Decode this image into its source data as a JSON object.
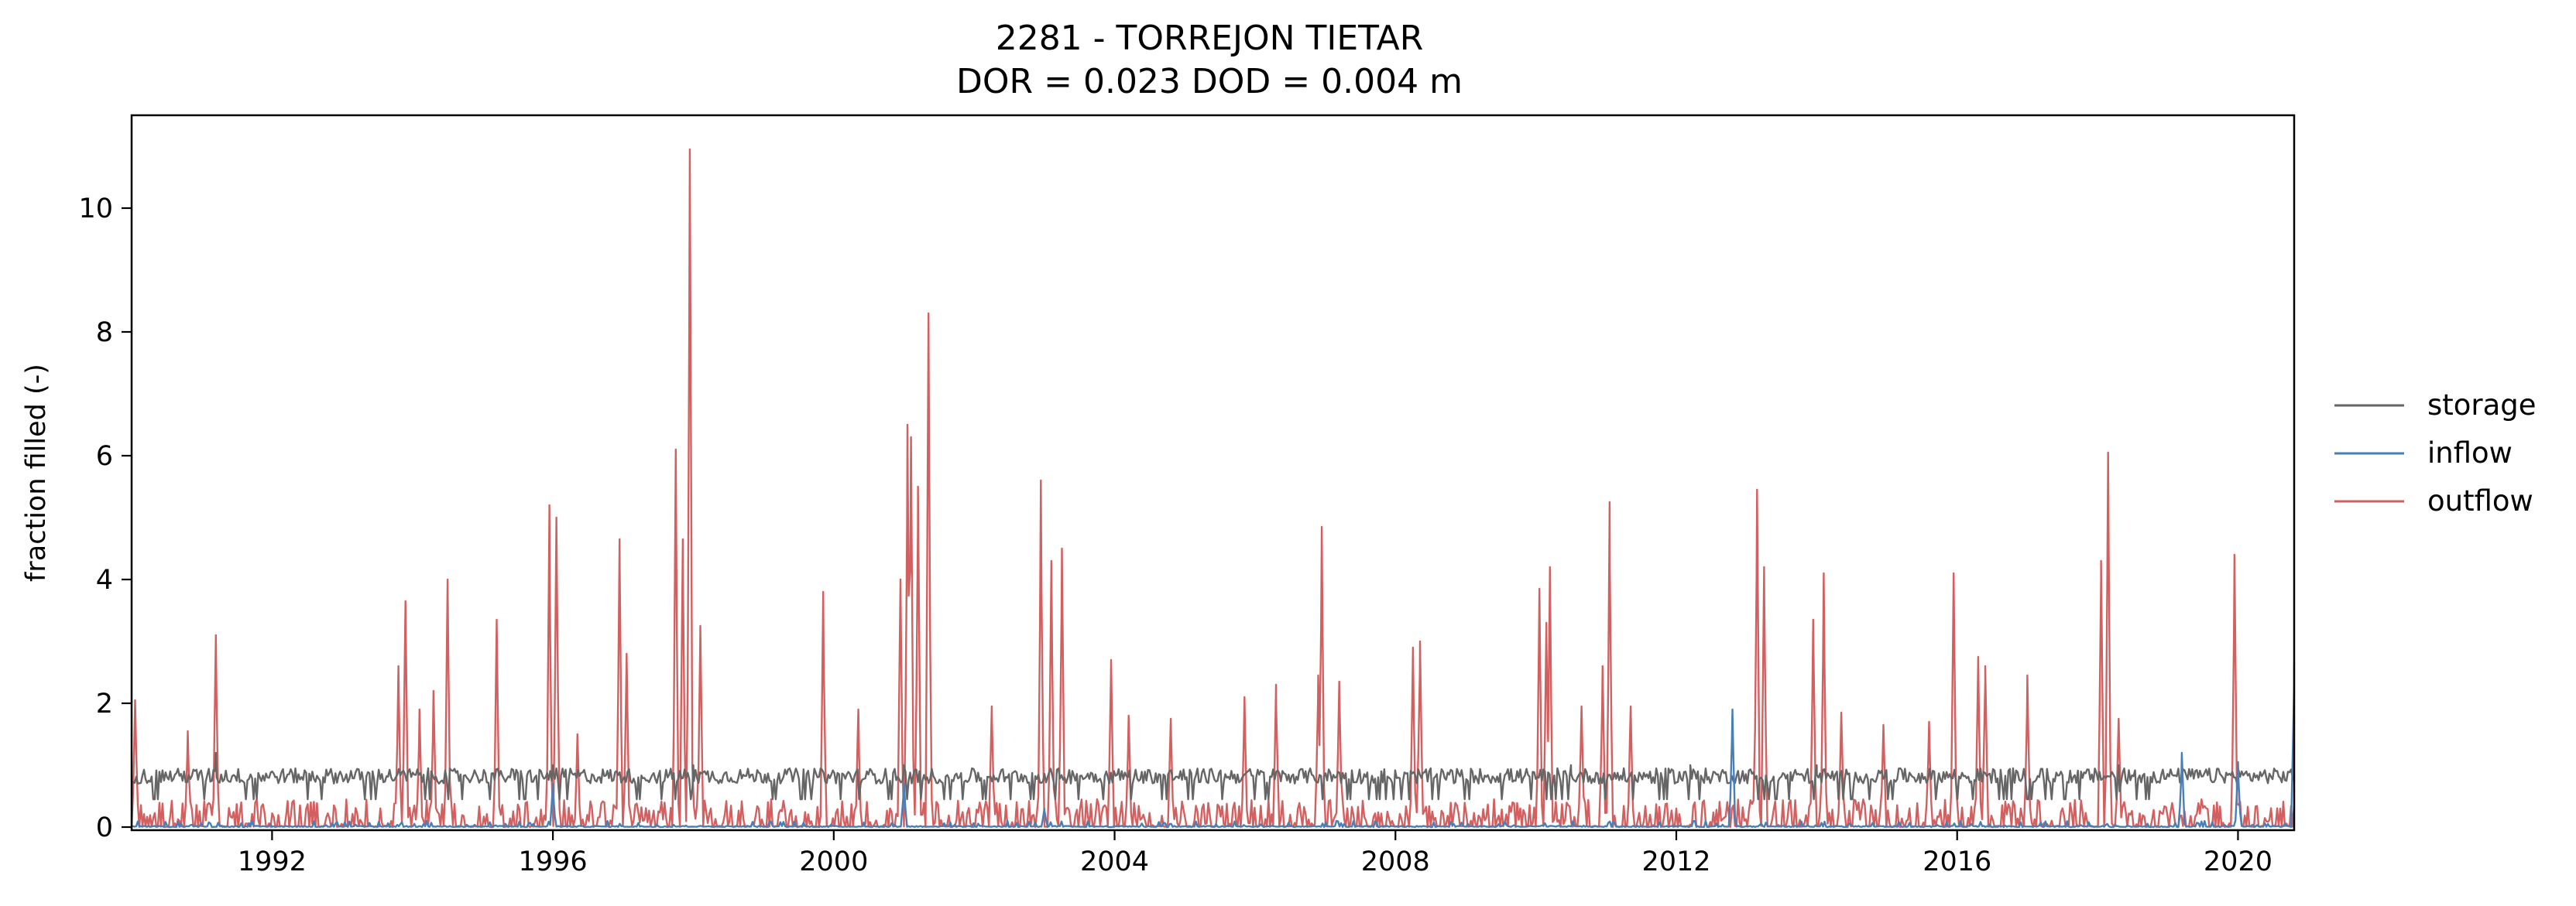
{
  "chart_data": {
    "type": "line",
    "title": "2281 - TORREJON TIETAR",
    "subtitle": "DOR = 0.023  DOD = 0.004 m",
    "xlabel": "",
    "ylabel": "fraction filled (-)",
    "xlim": [
      1990.0,
      2020.8
    ],
    "ylim": [
      -0.05,
      11.5
    ],
    "x_ticks": [
      1992,
      1996,
      2000,
      2004,
      2008,
      2012,
      2016,
      2020
    ],
    "x_tick_labels": [
      "1992",
      "1996",
      "2000",
      "2004",
      "2008",
      "2012",
      "2016",
      "2020"
    ],
    "y_ticks": [
      0,
      2,
      4,
      6,
      8,
      10
    ],
    "y_tick_labels": [
      "0",
      "2",
      "4",
      "6",
      "8",
      "10"
    ],
    "grid": false,
    "legend_placement": "outside-right",
    "series": [
      {
        "name": "storage",
        "color": "#666666",
        "baseline_band": [
          0.5,
          0.95
        ],
        "peaks": [
          [
            1991.2,
            1.2
          ],
          [
            1996.0,
            1.0
          ],
          [
            1998.0,
            1.0
          ],
          [
            2001.0,
            1.0
          ],
          [
            2010.5,
            1.0
          ],
          [
            2012.2,
            1.0
          ],
          [
            2014.0,
            1.0
          ],
          [
            2018.3,
            1.0
          ]
        ]
      },
      {
        "name": "inflow",
        "color": "#4a7fb5",
        "baseline_band": [
          0.0,
          0.1
        ],
        "peaks": [
          [
            1996.0,
            0.7
          ],
          [
            2001.0,
            0.7
          ],
          [
            2003.0,
            0.3
          ],
          [
            2012.8,
            1.9
          ],
          [
            2019.2,
            1.2
          ],
          [
            2020.0,
            1.05
          ],
          [
            2020.8,
            2.6
          ]
        ]
      },
      {
        "name": "outflow",
        "color": "#d36060",
        "baseline_band": [
          0.0,
          0.45
        ],
        "peaks": [
          [
            1990.05,
            2.05
          ],
          [
            1990.8,
            1.55
          ],
          [
            1991.2,
            3.1
          ],
          [
            1993.8,
            2.6
          ],
          [
            1993.9,
            3.65
          ],
          [
            1994.1,
            1.9
          ],
          [
            1994.3,
            2.2
          ],
          [
            1994.5,
            4.0
          ],
          [
            1995.2,
            3.35
          ],
          [
            1995.95,
            5.2
          ],
          [
            1996.05,
            5.0
          ],
          [
            1996.35,
            1.5
          ],
          [
            1996.95,
            4.65
          ],
          [
            1997.05,
            2.8
          ],
          [
            1997.75,
            6.1
          ],
          [
            1997.85,
            4.65
          ],
          [
            1997.95,
            10.95
          ],
          [
            1998.1,
            3.25
          ],
          [
            1999.85,
            3.8
          ],
          [
            2000.35,
            1.9
          ],
          [
            2000.95,
            4.0
          ],
          [
            2001.05,
            6.5
          ],
          [
            2001.1,
            6.3
          ],
          [
            2001.2,
            5.5
          ],
          [
            2001.35,
            8.3
          ],
          [
            2002.25,
            1.95
          ],
          [
            2002.95,
            5.6
          ],
          [
            2003.1,
            4.3
          ],
          [
            2003.25,
            4.5
          ],
          [
            2003.95,
            2.7
          ],
          [
            2004.2,
            1.8
          ],
          [
            2004.8,
            1.75
          ],
          [
            2005.85,
            2.1
          ],
          [
            2006.3,
            2.3
          ],
          [
            2006.9,
            2.45
          ],
          [
            2006.95,
            4.85
          ],
          [
            2007.2,
            2.35
          ],
          [
            2008.25,
            2.9
          ],
          [
            2008.35,
            3.0
          ],
          [
            2010.05,
            3.85
          ],
          [
            2010.15,
            3.3
          ],
          [
            2010.2,
            4.2
          ],
          [
            2010.65,
            1.95
          ],
          [
            2010.95,
            2.6
          ],
          [
            2011.05,
            5.25
          ],
          [
            2011.35,
            1.95
          ],
          [
            2013.15,
            5.45
          ],
          [
            2013.25,
            4.2
          ],
          [
            2013.95,
            3.35
          ],
          [
            2014.1,
            4.1
          ],
          [
            2014.35,
            1.85
          ],
          [
            2014.95,
            1.65
          ],
          [
            2015.6,
            1.7
          ],
          [
            2015.95,
            4.1
          ],
          [
            2016.3,
            2.75
          ],
          [
            2016.4,
            2.6
          ],
          [
            2017.0,
            2.45
          ],
          [
            2018.05,
            4.3
          ],
          [
            2018.15,
            6.05
          ],
          [
            2018.3,
            1.75
          ],
          [
            2019.95,
            4.4
          ]
        ]
      }
    ]
  }
}
